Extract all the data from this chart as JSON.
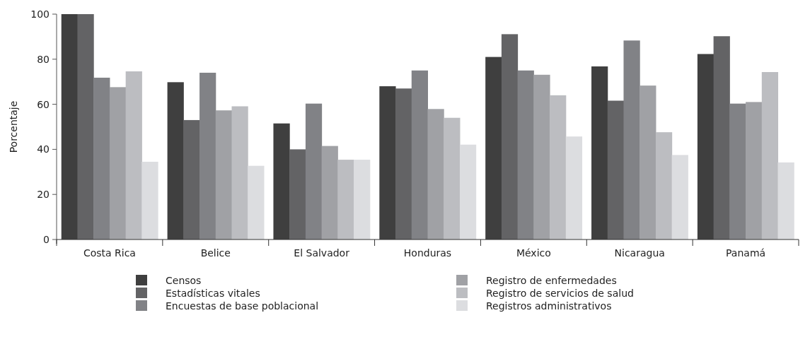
{
  "chart_data": {
    "type": "bar",
    "ylabel": "Porcentaje",
    "categories": [
      "Costa Rica",
      "Belice",
      "El Salvador",
      "Honduras",
      "México",
      "Nicaragua",
      "Panamá"
    ],
    "series": [
      {
        "name": "Censos",
        "color": "#3f3f3f",
        "values": [
          100,
          69.8,
          51.5,
          68,
          81,
          76.8,
          82.3
        ]
      },
      {
        "name": "Estadísticas vitales",
        "color": "#636365",
        "values": [
          100,
          53,
          40,
          67,
          91.1,
          61.6,
          90.2
        ]
      },
      {
        "name": "Encuestas de base poblacional",
        "color": "#818286",
        "values": [
          71.8,
          74,
          60.3,
          75,
          75,
          88.3,
          60.3
        ]
      },
      {
        "name": "Registro de enfermedades",
        "color": "#a0a1a5",
        "values": [
          67.6,
          57.3,
          41.5,
          57.9,
          73.1,
          68.3,
          61
        ]
      },
      {
        "name": "Registro de servicios de salud",
        "color": "#bcbdc1",
        "values": [
          74.6,
          59.1,
          35.4,
          54,
          64,
          47.6,
          74.3
        ]
      },
      {
        "name": "Registros administrativos",
        "color": "#dcdde0",
        "values": [
          34.5,
          32.7,
          35.4,
          42.1,
          45.7,
          37.5,
          34.2
        ]
      }
    ],
    "ylim": [
      0,
      100
    ],
    "yticks": [
      0,
      20,
      40,
      60,
      80,
      100
    ],
    "grid": false,
    "legend": "bottom"
  }
}
